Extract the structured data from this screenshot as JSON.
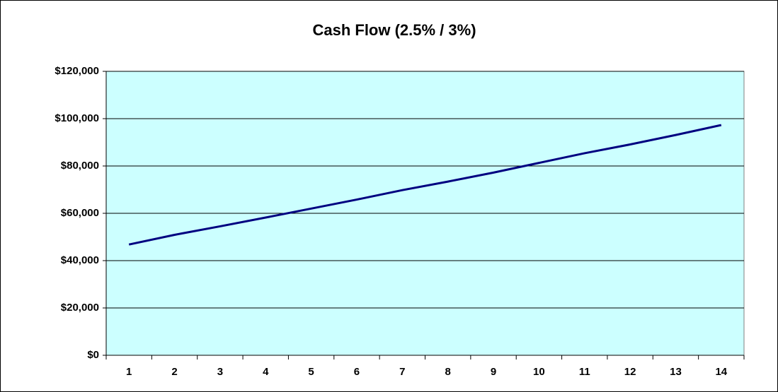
{
  "chart_data": {
    "type": "line",
    "title": "Cash Flow (2.5% / 3%)",
    "categories": [
      1,
      2,
      3,
      4,
      5,
      6,
      7,
      8,
      9,
      10,
      11,
      12,
      13,
      14
    ],
    "series": [
      {
        "name": "Cash Flow",
        "color": "#000080",
        "values": [
          46800,
          50900,
          54500,
          58200,
          62000,
          65800,
          69800,
          73400,
          77200,
          81300,
          85400,
          89100,
          93100,
          97300
        ]
      }
    ],
    "ylim": [
      0,
      120000
    ],
    "yticks": [
      {
        "value": 0,
        "label": "$0"
      },
      {
        "value": 20000,
        "label": "$20,000"
      },
      {
        "value": 40000,
        "label": "$40,000"
      },
      {
        "value": 60000,
        "label": "$60,000"
      },
      {
        "value": 80000,
        "label": "$80,000"
      },
      {
        "value": 100000,
        "label": "$100,000"
      },
      {
        "value": 120000,
        "label": "$120,000"
      }
    ],
    "grid": true,
    "plot_background": "#ccffff"
  }
}
